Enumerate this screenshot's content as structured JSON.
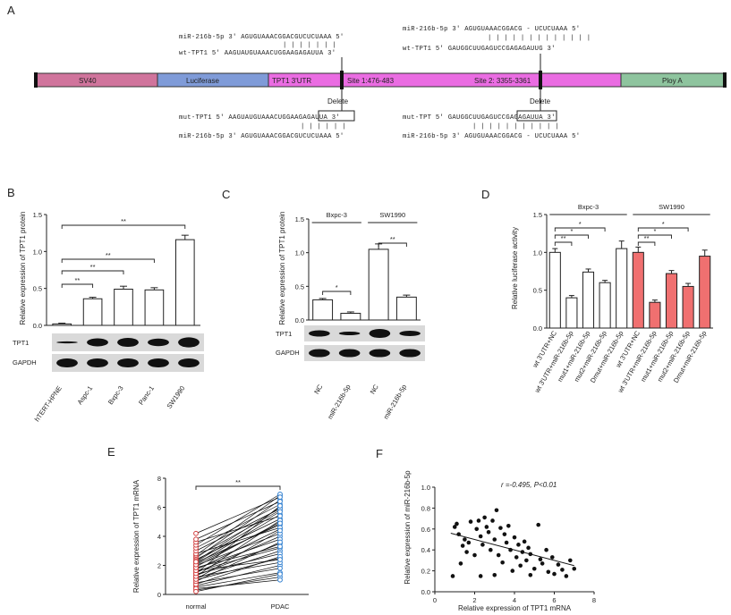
{
  "panels": {
    "A": "A",
    "B": "B",
    "C": "C",
    "D": "D",
    "E": "E",
    "F": "F"
  },
  "panelA": {
    "top_left": {
      "mir": "miR-216b-5p 3' AGUGUAAACGGACGUCUCUAAA 5'",
      "wt": "wt-TPT1  5' AAGUAUGUAAACUGGAAGAGAUUA 3'",
      "pair": "| | | | | | |"
    },
    "top_right": {
      "mir": "miR-216b-5p 3' AGUGUAAACGGACG - UCUCUAAA 5'",
      "wt": "wt-TPT1  5' GAUGGCUUGAGUCCGAGAGAUUG 3'",
      "pair": "| | | | | |   | | | | | | |"
    },
    "bottom_left": {
      "delete": "Delete",
      "mut": "mut-TPT1 5' AAGUAUGUAAACUGGAAGAGAUUA 3'",
      "mir": "miR-216b-5p 3' AGUGUAAACGGACGUCUCUAAA 5'",
      "pair": "| | | | | |"
    },
    "bottom_right": {
      "delete": "Delete",
      "mut": "mut-TPT 5' GAUGGCUUGAGUCCGAGAGAUUA 3'",
      "mir": "miR-216b-5p 3' AGUGUAAACGGACG - UCUCUAAA 5'",
      "pair": "| | | | | |   | | | | |"
    },
    "segments": [
      {
        "label": "SV40",
        "color": "#d0749c"
      },
      {
        "label": "Luciferase",
        "color": "#7f9bd8"
      },
      {
        "label": "TPT1 3'UTR",
        "color": "#ea6ce2"
      },
      {
        "label": "Site 1:476-483",
        "color": "#ea6ce2"
      },
      {
        "label": "Site 2: 3355-3361",
        "color": "#ea6ce2"
      },
      {
        "label": "Ploy A",
        "color": "#8ec49e"
      }
    ]
  },
  "chart_data": [
    {
      "id": "B",
      "type": "bar",
      "ylabel": "Relative expression of TPT1 protein",
      "ylim": [
        0,
        1.5
      ],
      "yticks": [
        "0.0",
        "0.5",
        "1.0",
        "1.5"
      ],
      "categories": [
        "hTERT-HPNE",
        "Aspc-1",
        "Bxpc-3",
        "Panc-1",
        "SW1990"
      ],
      "values": [
        0.02,
        0.36,
        0.49,
        0.48,
        1.16
      ],
      "errors": [
        0.01,
        0.02,
        0.04,
        0.03,
        0.06
      ],
      "significance": [
        "**",
        "**",
        "**",
        "**"
      ],
      "blots": [
        "TPT1",
        "GAPDH"
      ]
    },
    {
      "id": "C",
      "type": "bar",
      "ylabel": "Relative expression of TPT1 protein",
      "ylim": [
        0,
        1.5
      ],
      "yticks": [
        "0.0",
        "0.5",
        "1.0",
        "1.5"
      ],
      "groups": [
        "Bxpc-3",
        "SW1990"
      ],
      "categories": [
        "NC",
        "miR-216b-5p",
        "NC",
        "miR-216b-5p"
      ],
      "values": [
        0.3,
        0.1,
        1.05,
        0.34
      ],
      "errors": [
        0.02,
        0.02,
        0.08,
        0.03
      ],
      "significance": [
        "*",
        "**"
      ],
      "blots": [
        "TPT1",
        "GAPDH"
      ]
    },
    {
      "id": "D",
      "type": "bar",
      "ylabel": "Relative luciferase activity",
      "ylim": [
        0,
        1.5
      ],
      "yticks": [
        "0.0",
        "0.5",
        "1.0",
        "1.5"
      ],
      "groups": [
        "Bxpc-3",
        "SW1990"
      ],
      "categories": [
        "wt 3'UTR+NC",
        "wt 3'UTR+miR-216b-5p",
        "mut1+miR-216b-5p",
        "mut2+miR-216b-5p",
        "Dmut+miR-216b-5p",
        "wt 3'UTR+NC",
        "wt 3'UTR+miR-216b-5p",
        "mut1+miR-216b-5p",
        "mut2+miR-216b-5p",
        "Dmut+miR-216b-5p"
      ],
      "values": [
        1.0,
        0.4,
        0.74,
        0.6,
        1.05,
        1.0,
        0.34,
        0.72,
        0.55,
        0.95
      ],
      "errors": [
        0.05,
        0.03,
        0.04,
        0.03,
        0.1,
        0.07,
        0.03,
        0.04,
        0.04,
        0.08
      ],
      "colors": [
        "#ffffff",
        "#ffffff",
        "#ffffff",
        "#ffffff",
        "#ffffff",
        "#f07070",
        "#f07070",
        "#f07070",
        "#f07070",
        "#f07070"
      ],
      "significance": [
        "**",
        "*",
        "*",
        "**",
        "*",
        "*"
      ]
    },
    {
      "id": "E",
      "type": "line",
      "ylabel": "Relative expression of TPT1 mRNA",
      "ylim": [
        0,
        8
      ],
      "yticks": [
        "0",
        "2",
        "4",
        "6",
        "8"
      ],
      "categories": [
        "normal",
        "PDAC"
      ],
      "significance": "**",
      "pairs": [
        [
          0.3,
          1.2
        ],
        [
          0.5,
          1.5
        ],
        [
          0.6,
          2.0
        ],
        [
          0.8,
          1.8
        ],
        [
          1.0,
          2.5
        ],
        [
          1.1,
          3.0
        ],
        [
          1.2,
          2.2
        ],
        [
          1.3,
          3.5
        ],
        [
          1.4,
          2.8
        ],
        [
          1.5,
          4.0
        ],
        [
          1.6,
          3.2
        ],
        [
          1.7,
          4.5
        ],
        [
          1.8,
          3.8
        ],
        [
          1.9,
          5.0
        ],
        [
          2.0,
          4.2
        ],
        [
          2.1,
          5.5
        ],
        [
          2.2,
          4.8
        ],
        [
          2.3,
          6.0
        ],
        [
          2.4,
          5.2
        ],
        [
          2.5,
          6.5
        ],
        [
          2.6,
          5.8
        ],
        [
          2.7,
          6.8
        ],
        [
          2.8,
          4.6
        ],
        [
          3.0,
          5.9
        ],
        [
          3.2,
          6.2
        ],
        [
          3.4,
          6.9
        ],
        [
          3.6,
          5.4
        ],
        [
          3.8,
          6.4
        ],
        [
          4.2,
          6.7
        ],
        [
          0.4,
          1.0
        ],
        [
          0.7,
          2.6
        ],
        [
          0.9,
          3.6
        ],
        [
          1.05,
          4.4
        ],
        [
          1.25,
          5.1
        ],
        [
          1.45,
          6.1
        ],
        [
          1.65,
          2.4
        ],
        [
          1.85,
          3.3
        ],
        [
          2.05,
          4.9
        ],
        [
          2.25,
          5.7
        ],
        [
          0.2,
          1.4
        ]
      ]
    },
    {
      "id": "F",
      "type": "scatter",
      "title": "r =-0.495, P<0.01",
      "xlabel": "Relative expression of TPT1 mRNA",
      "ylabel": "Relative expression of miR-216b-5p",
      "xlim": [
        0,
        8
      ],
      "ylim": [
        0,
        1.0
      ],
      "xticks": [
        "0",
        "2",
        "4",
        "6",
        "8"
      ],
      "yticks": [
        "0.0",
        "0.2",
        "0.4",
        "0.6",
        "0.8",
        "1.0"
      ],
      "fit": [
        [
          0.8,
          0.56
        ],
        [
          7.0,
          0.25
        ]
      ],
      "points": [
        [
          1.0,
          0.62
        ],
        [
          1.1,
          0.65
        ],
        [
          1.2,
          0.55
        ],
        [
          1.3,
          0.27
        ],
        [
          1.4,
          0.44
        ],
        [
          1.5,
          0.5
        ],
        [
          1.6,
          0.38
        ],
        [
          1.7,
          0.47
        ],
        [
          1.8,
          0.67
        ],
        [
          0.9,
          0.15
        ],
        [
          2.0,
          0.35
        ],
        [
          2.1,
          0.6
        ],
        [
          2.2,
          0.68
        ],
        [
          2.3,
          0.53
        ],
        [
          2.4,
          0.45
        ],
        [
          2.5,
          0.71
        ],
        [
          2.6,
          0.62
        ],
        [
          2.7,
          0.57
        ],
        [
          2.8,
          0.4
        ],
        [
          2.9,
          0.68
        ],
        [
          3.0,
          0.5
        ],
        [
          3.1,
          0.78
        ],
        [
          3.2,
          0.35
        ],
        [
          3.3,
          0.61
        ],
        [
          3.4,
          0.28
        ],
        [
          3.5,
          0.55
        ],
        [
          3.6,
          0.47
        ],
        [
          3.7,
          0.63
        ],
        [
          3.8,
          0.4
        ],
        [
          3.9,
          0.2
        ],
        [
          4.0,
          0.52
        ],
        [
          4.1,
          0.33
        ],
        [
          4.2,
          0.45
        ],
        [
          4.3,
          0.25
        ],
        [
          4.4,
          0.38
        ],
        [
          4.5,
          0.48
        ],
        [
          4.6,
          0.3
        ],
        [
          4.7,
          0.42
        ],
        [
          4.8,
          0.36
        ],
        [
          5.0,
          0.22
        ],
        [
          5.2,
          0.64
        ],
        [
          5.3,
          0.31
        ],
        [
          5.4,
          0.27
        ],
        [
          5.6,
          0.4
        ],
        [
          5.7,
          0.19
        ],
        [
          5.9,
          0.33
        ],
        [
          6.0,
          0.17
        ],
        [
          6.2,
          0.26
        ],
        [
          6.4,
          0.21
        ],
        [
          6.6,
          0.15
        ],
        [
          6.8,
          0.3
        ],
        [
          7.0,
          0.22
        ],
        [
          2.3,
          0.15
        ],
        [
          3.0,
          0.16
        ],
        [
          4.8,
          0.16
        ]
      ]
    }
  ]
}
